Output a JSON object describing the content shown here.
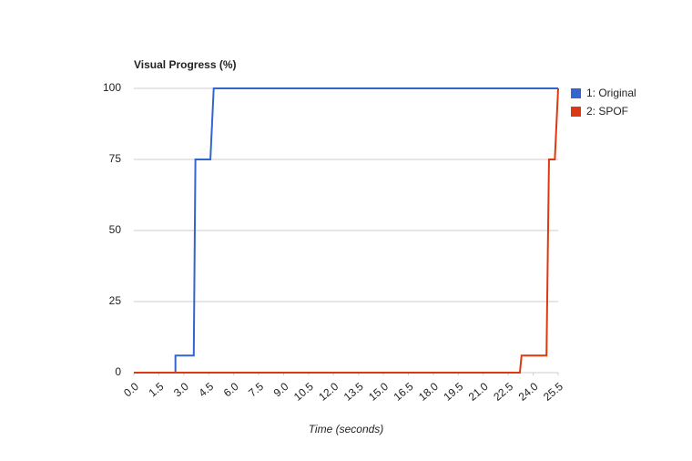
{
  "chart_data": {
    "type": "line",
    "title": "Visual Progress (%)",
    "x_label": "Time (seconds)",
    "series": [
      {
        "name": "1: Original",
        "color": "#3366cc",
        "x": [
          0,
          2.5,
          2.5,
          3.6,
          3.7,
          4.6,
          4.8,
          25.5
        ],
        "values": [
          0,
          0,
          6,
          6,
          75,
          75,
          100,
          100
        ]
      },
      {
        "name": "2: SPOF",
        "color": "#dc3912",
        "x": [
          0,
          23.2,
          23.3,
          24.8,
          24.95,
          25.3,
          25.5
        ],
        "values": [
          0,
          0,
          6,
          6,
          75,
          75,
          100
        ]
      }
    ],
    "xlim": [
      0,
      25.5
    ],
    "xticks": [
      {
        "value": 0,
        "label": "0.0"
      },
      1.5,
      {
        "value": 3,
        "label": "3.0"
      },
      4.5,
      {
        "value": 6,
        "label": "6.0"
      },
      7.5,
      {
        "value": 9,
        "label": "9.0"
      },
      10.5,
      {
        "value": 12,
        "label": "12.0"
      },
      13.5,
      {
        "value": 15,
        "label": "15.0"
      },
      16.5,
      {
        "value": 18,
        "label": "18.0"
      },
      19.5,
      {
        "value": 21,
        "label": "21.0"
      },
      22.5,
      {
        "value": 24,
        "label": "24.0"
      },
      25.5
    ],
    "ylim": [
      0,
      100
    ],
    "yticks": [
      0,
      25,
      50,
      75,
      100
    ],
    "grid": true,
    "legend": "right"
  }
}
